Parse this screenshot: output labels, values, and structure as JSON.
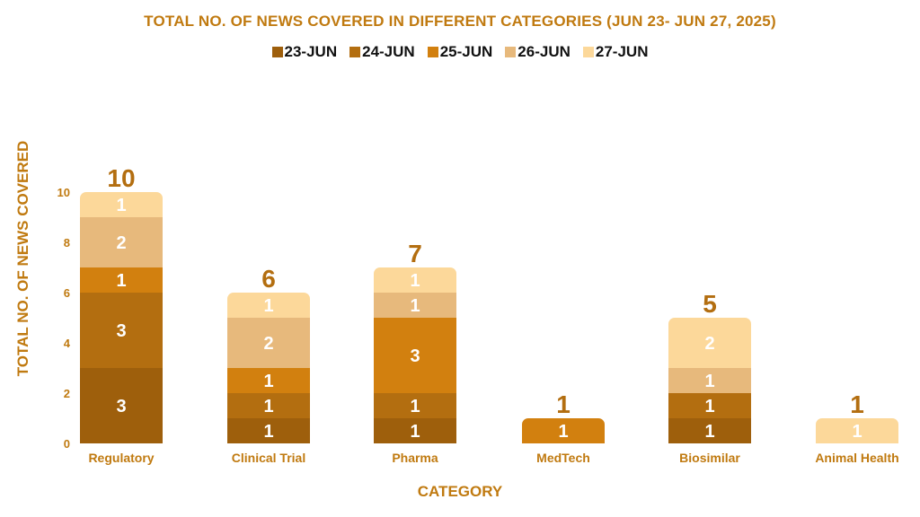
{
  "chart_data": {
    "type": "bar",
    "stacked": true,
    "title": "TOTAL NO. OF NEWS COVERED IN DIFFERENT CATEGORIES (JUN 23- JUN 27, 2025)",
    "xlabel": "CATEGORY",
    "ylabel": "TOTAL  NO. OF NEWS COVERED",
    "ylim": [
      0,
      10
    ],
    "yticks": [
      0,
      2,
      4,
      6,
      8,
      10
    ],
    "categories": [
      "Regulatory",
      "Clinical Trial",
      "Pharma",
      "MedTech",
      "Biosimilar",
      "Animal Health"
    ],
    "series": [
      {
        "name": "23-JUN",
        "color": "#9e5f0c",
        "values": [
          3,
          1,
          1,
          0,
          1,
          0
        ]
      },
      {
        "name": "24-JUN",
        "color": "#b36e10",
        "values": [
          3,
          1,
          1,
          0,
          1,
          0
        ]
      },
      {
        "name": "25-JUN",
        "color": "#d2800f",
        "values": [
          1,
          1,
          3,
          1,
          0,
          0
        ]
      },
      {
        "name": "26-JUN",
        "color": "#e7b97c",
        "values": [
          2,
          2,
          1,
          0,
          1,
          0
        ]
      },
      {
        "name": "27-JUN",
        "color": "#fcd89a",
        "values": [
          1,
          1,
          1,
          0,
          2,
          1
        ]
      }
    ],
    "totals": [
      10,
      6,
      7,
      1,
      5,
      1
    ],
    "legend_position": "top-center",
    "grid": false
  }
}
